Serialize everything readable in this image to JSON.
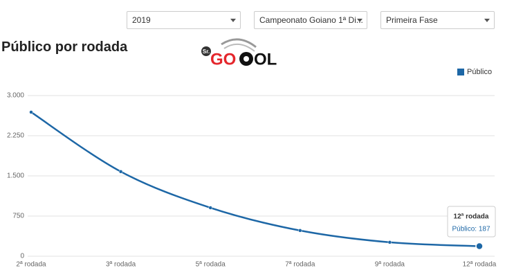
{
  "filters": [
    "2019",
    "Campeonato Goiano 1ª Di...",
    "Primeira Fase"
  ],
  "logo": {
    "prefix": "Sr.",
    "start": "GO",
    "end": "OL"
  },
  "chart_data": {
    "type": "line",
    "title": "Público por rodada",
    "categories": [
      "2ª rodada",
      "3ª rodada",
      "5ª rodada",
      "7ª rodada",
      "9ª rodada",
      "12ª rodada"
    ],
    "series": [
      {
        "name": "Público",
        "color": "#1d67a6",
        "values": [
          2690,
          1580,
          905,
          480,
          260,
          187
        ]
      }
    ],
    "ylim": [
      0,
      3000
    ],
    "yticks": [
      0,
      750,
      {
        "value": 1500,
        "label": "1.500"
      },
      {
        "value": 2250,
        "label": "2.250"
      },
      {
        "value": 3000,
        "label": "3.000"
      }
    ],
    "grid": true,
    "legend": "top-right",
    "tooltip": {
      "title": "12ª rodada",
      "label": "Público: 187"
    }
  }
}
